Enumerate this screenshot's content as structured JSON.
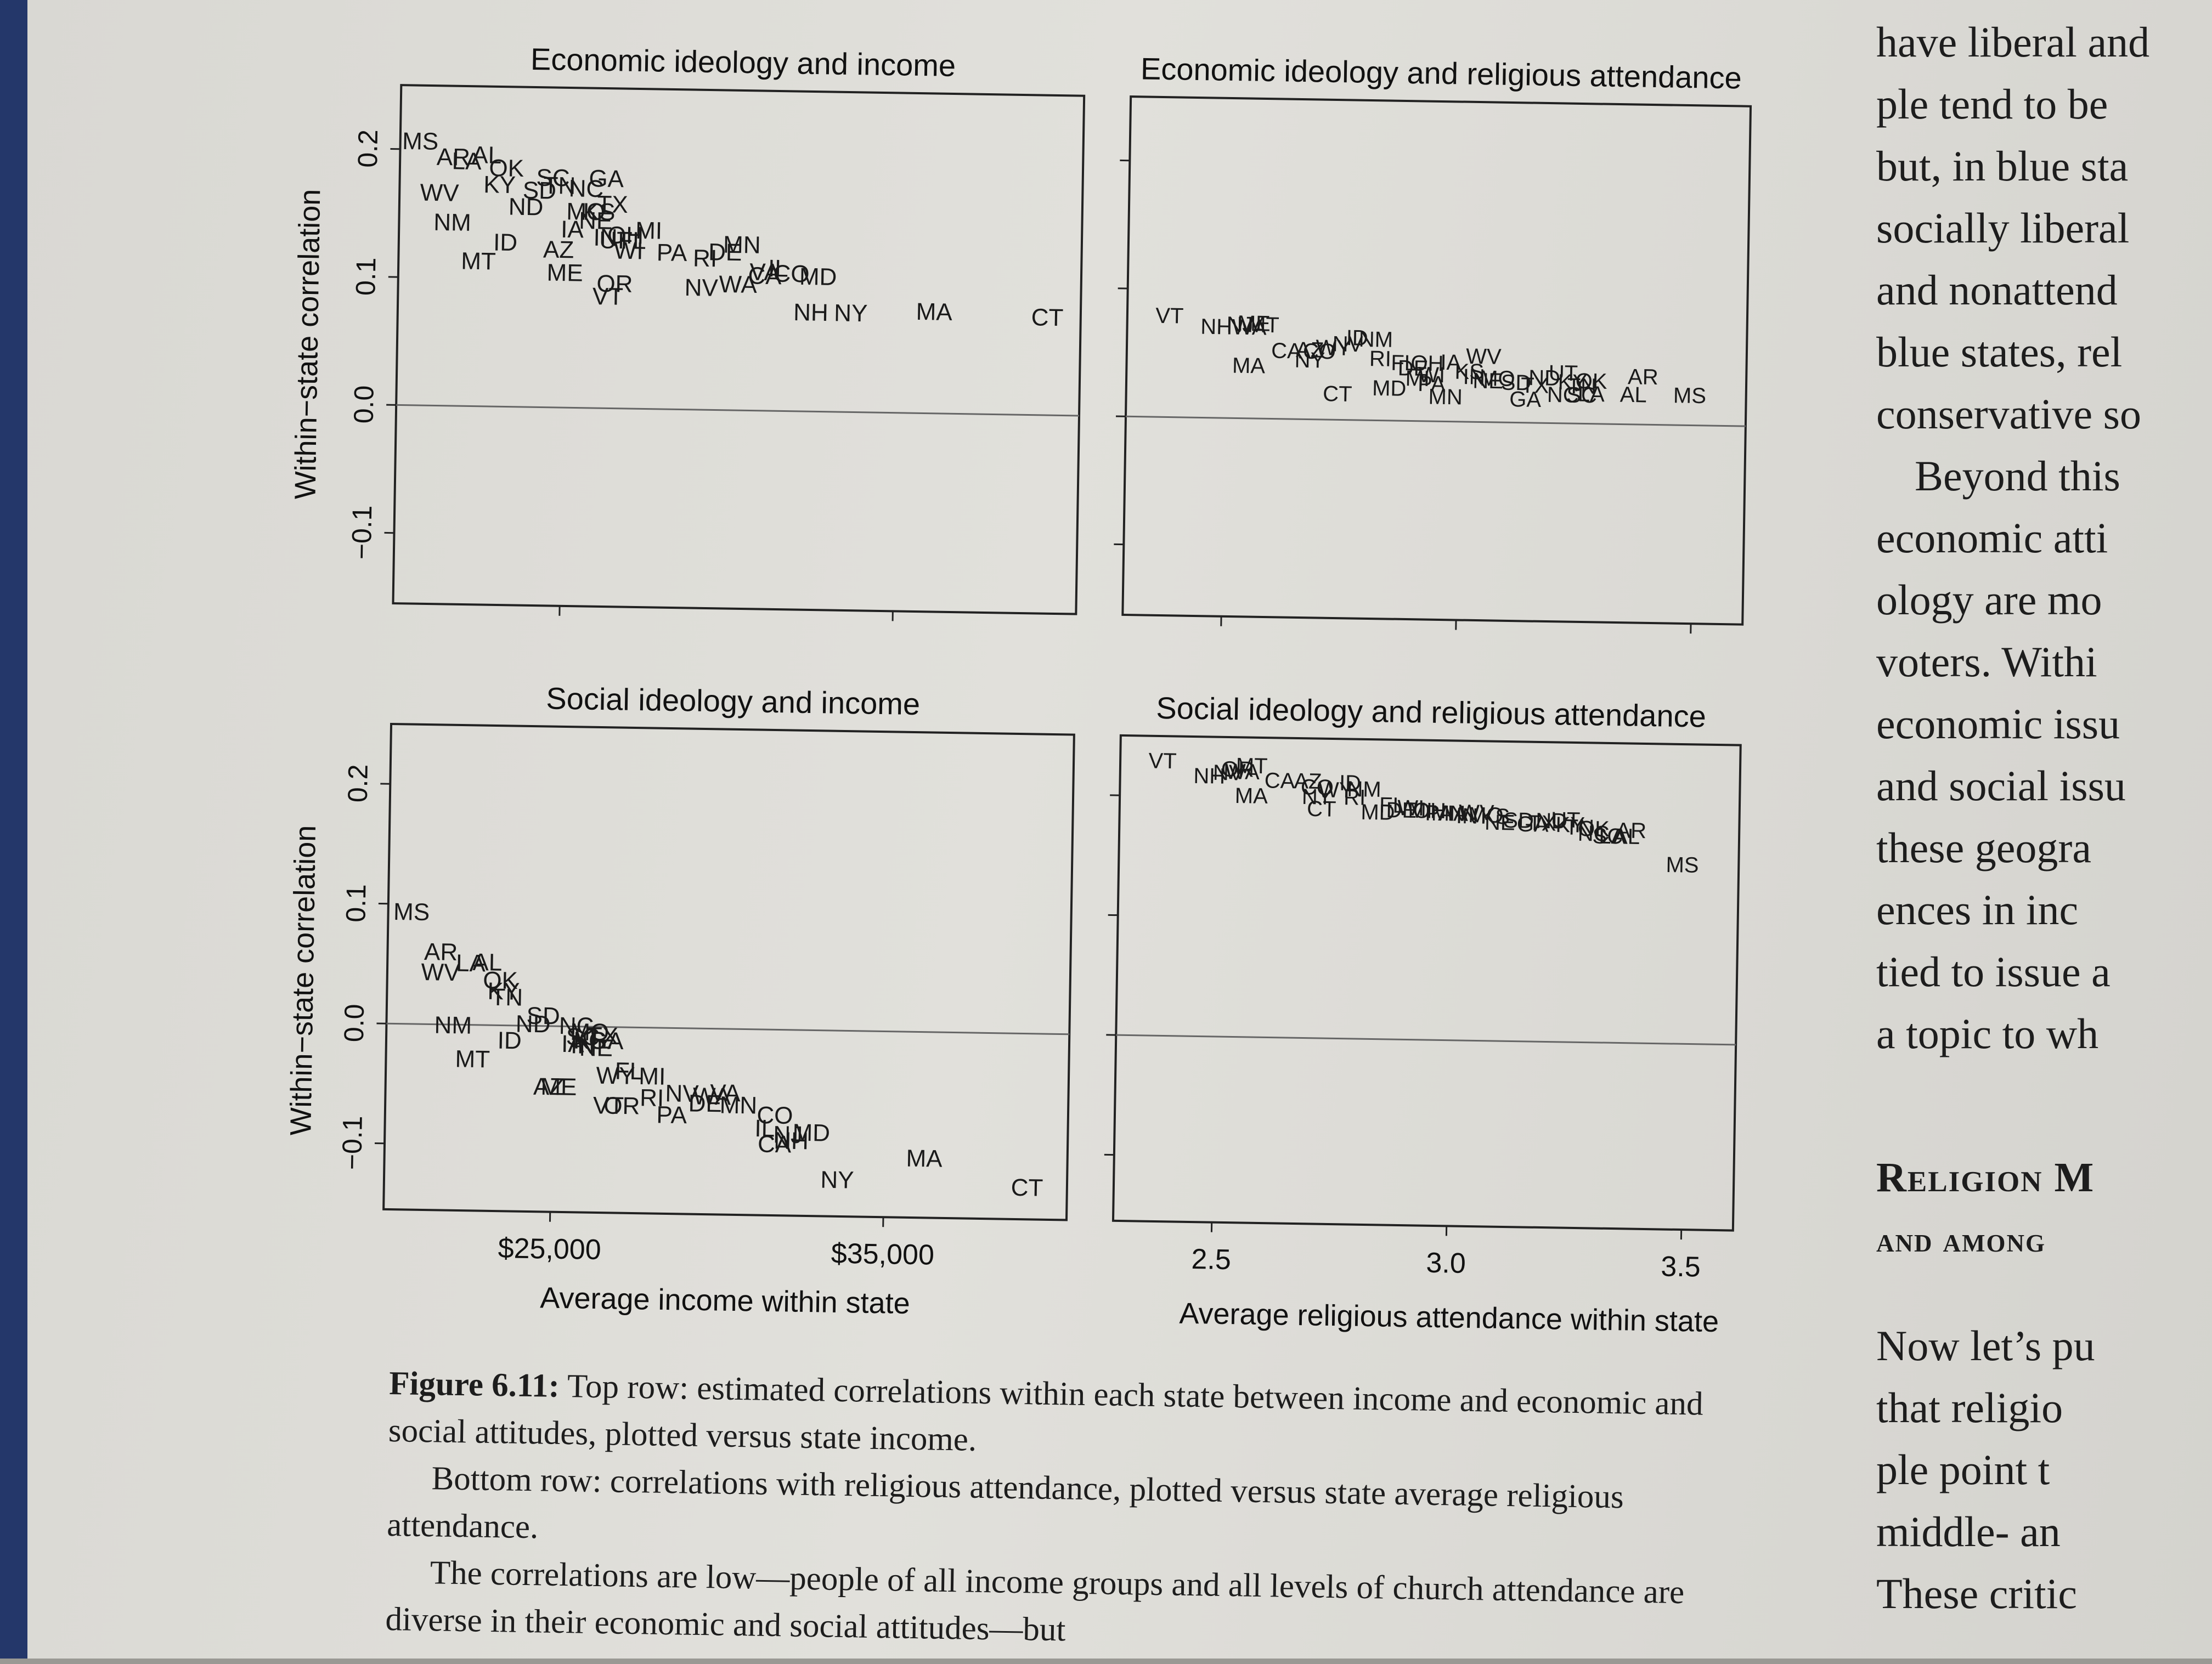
{
  "figure": {
    "ylabel": "Within−state correlation",
    "xlabel_income": "Average income within state",
    "xlabel_attendance": "Average religious attendance within state",
    "yticks": [
      "−0.1",
      "0.0",
      "0.1",
      "0.2"
    ],
    "income_ticks": [
      "$25,000",
      "$35,000"
    ],
    "attendance_ticks": [
      "2.5",
      "3.0",
      "3.5"
    ]
  },
  "chart_data": [
    {
      "type": "scatter",
      "title": "Economic ideology and income",
      "ylabel": "Within−state correlation",
      "xaxis": "income",
      "xlim": [
        20000,
        40500
      ],
      "ylim": [
        -0.155,
        0.25
      ],
      "show_xticks": false,
      "show_yticks": true,
      "zero_line": true,
      "points": [
        {
          "label": "MS",
          "x": 20600,
          "y": 0.205
        },
        {
          "label": "AR",
          "x": 21600,
          "y": 0.193
        },
        {
          "label": "AL",
          "x": 22600,
          "y": 0.195
        },
        {
          "label": "OK",
          "x": 23200,
          "y": 0.185
        },
        {
          "label": "WV",
          "x": 21200,
          "y": 0.165
        },
        {
          "label": "KY",
          "x": 23000,
          "y": 0.172
        },
        {
          "label": "SD",
          "x": 24200,
          "y": 0.168
        },
        {
          "label": "TN",
          "x": 24800,
          "y": 0.172
        },
        {
          "label": "NC",
          "x": 25600,
          "y": 0.17
        },
        {
          "label": "GA",
          "x": 26200,
          "y": 0.178
        },
        {
          "label": "ND",
          "x": 23800,
          "y": 0.155
        },
        {
          "label": "LA",
          "x": 22000,
          "y": 0.19
        },
        {
          "label": "TX",
          "x": 26400,
          "y": 0.158
        },
        {
          "label": "MO",
          "x": 25600,
          "y": 0.152
        },
        {
          "label": "NM",
          "x": 21600,
          "y": 0.142
        },
        {
          "label": "IA",
          "x": 25200,
          "y": 0.138
        },
        {
          "label": "SC",
          "x": 24600,
          "y": 0.178
        },
        {
          "label": "NE",
          "x": 25900,
          "y": 0.145
        },
        {
          "label": "KS",
          "x": 26000,
          "y": 0.152
        },
        {
          "label": "MI",
          "x": 27500,
          "y": 0.138
        },
        {
          "label": "OH",
          "x": 26800,
          "y": 0.134
        },
        {
          "label": "IN",
          "x": 26200,
          "y": 0.132
        },
        {
          "label": "FL",
          "x": 27000,
          "y": 0.13
        },
        {
          "label": "WI",
          "x": 26900,
          "y": 0.122
        },
        {
          "label": "UT",
          "x": 26500,
          "y": 0.13
        },
        {
          "label": "PA",
          "x": 28200,
          "y": 0.121
        },
        {
          "label": "RI",
          "x": 29200,
          "y": 0.117
        },
        {
          "label": "DE",
          "x": 29800,
          "y": 0.122
        },
        {
          "label": "MN",
          "x": 30300,
          "y": 0.128
        },
        {
          "label": "ID",
          "x": 23200,
          "y": 0.127
        },
        {
          "label": "AZ",
          "x": 24800,
          "y": 0.122
        },
        {
          "label": "MT",
          "x": 22400,
          "y": 0.112
        },
        {
          "label": "ME",
          "x": 25000,
          "y": 0.104
        },
        {
          "label": "OR",
          "x": 26500,
          "y": 0.096
        },
        {
          "label": "VT",
          "x": 26300,
          "y": 0.086
        },
        {
          "label": "NV",
          "x": 29100,
          "y": 0.094
        },
        {
          "label": "WA",
          "x": 30200,
          "y": 0.097
        },
        {
          "label": "VA",
          "x": 31000,
          "y": 0.107
        },
        {
          "label": "IL",
          "x": 31400,
          "y": 0.11
        },
        {
          "label": "CA",
          "x": 31000,
          "y": 0.104
        },
        {
          "label": "CO",
          "x": 31800,
          "y": 0.106
        },
        {
          "label": "MD",
          "x": 32600,
          "y": 0.104
        },
        {
          "label": "NH",
          "x": 32400,
          "y": 0.076
        },
        {
          "label": "NY",
          "x": 33600,
          "y": 0.076
        },
        {
          "label": "MA",
          "x": 36100,
          "y": 0.078
        },
        {
          "label": "CT",
          "x": 39500,
          "y": 0.075
        }
      ]
    },
    {
      "type": "scatter",
      "title": "Economic ideology and religious attendance",
      "xaxis": "attendance",
      "xlim": [
        2.29,
        3.61
      ],
      "ylim": [
        -0.155,
        0.25
      ],
      "show_xticks": false,
      "show_yticks": false,
      "zero_line": true,
      "points": [
        {
          "label": "VT",
          "x": 2.38,
          "y": 0.078
        },
        {
          "label": "NH",
          "x": 2.48,
          "y": 0.07
        },
        {
          "label": "NJ",
          "x": 2.53,
          "y": 0.072
        },
        {
          "label": "WA",
          "x": 2.55,
          "y": 0.07
        },
        {
          "label": "ME",
          "x": 2.56,
          "y": 0.073
        },
        {
          "label": "MT",
          "x": 2.58,
          "y": 0.072
        },
        {
          "label": "MA",
          "x": 2.55,
          "y": 0.04
        },
        {
          "label": "CA",
          "x": 2.63,
          "y": 0.052
        },
        {
          "label": "AZ",
          "x": 2.68,
          "y": 0.053
        },
        {
          "label": "NY",
          "x": 2.68,
          "y": 0.045
        },
        {
          "label": "CO",
          "x": 2.7,
          "y": 0.052
        },
        {
          "label": "WY",
          "x": 2.73,
          "y": 0.055
        },
        {
          "label": "NV",
          "x": 2.76,
          "y": 0.058
        },
        {
          "label": "ID",
          "x": 2.78,
          "y": 0.063
        },
        {
          "label": "NM",
          "x": 2.82,
          "y": 0.062
        },
        {
          "label": "RI",
          "x": 2.83,
          "y": 0.047
        },
        {
          "label": "CT",
          "x": 2.74,
          "y": 0.019
        },
        {
          "label": "MD",
          "x": 2.85,
          "y": 0.024
        },
        {
          "label": "FL",
          "x": 2.88,
          "y": 0.044
        },
        {
          "label": "DE",
          "x": 2.9,
          "y": 0.04
        },
        {
          "label": "OH",
          "x": 2.93,
          "y": 0.044
        },
        {
          "label": "WI",
          "x": 2.94,
          "y": 0.035
        },
        {
          "label": "MI",
          "x": 2.91,
          "y": 0.032
        },
        {
          "label": "PA",
          "x": 2.94,
          "y": 0.028
        },
        {
          "label": "MN",
          "x": 2.97,
          "y": 0.018
        },
        {
          "label": "IA",
          "x": 2.98,
          "y": 0.045
        },
        {
          "label": "KS",
          "x": 3.02,
          "y": 0.038
        },
        {
          "label": "IN",
          "x": 3.03,
          "y": 0.034
        },
        {
          "label": "WV",
          "x": 3.05,
          "y": 0.05
        },
        {
          "label": "NE",
          "x": 3.06,
          "y": 0.031
        },
        {
          "label": "MO",
          "x": 3.08,
          "y": 0.033
        },
        {
          "label": "SD",
          "x": 3.12,
          "y": 0.03
        },
        {
          "label": "GA",
          "x": 3.14,
          "y": 0.017
        },
        {
          "label": "TX",
          "x": 3.16,
          "y": 0.028
        },
        {
          "label": "ND",
          "x": 3.18,
          "y": 0.034
        },
        {
          "label": "UT",
          "x": 3.22,
          "y": 0.038
        },
        {
          "label": "KY",
          "x": 3.24,
          "y": 0.031
        },
        {
          "label": "TN",
          "x": 3.26,
          "y": 0.028
        },
        {
          "label": "OK",
          "x": 3.28,
          "y": 0.032
        },
        {
          "label": "NC",
          "x": 3.22,
          "y": 0.021
        },
        {
          "label": "SC",
          "x": 3.26,
          "y": 0.021
        },
        {
          "label": "LA",
          "x": 3.28,
          "y": 0.022
        },
        {
          "label": "AL",
          "x": 3.37,
          "y": 0.022
        },
        {
          "label": "AR",
          "x": 3.39,
          "y": 0.036
        },
        {
          "label": "MS",
          "x": 3.49,
          "y": 0.022
        }
      ]
    },
    {
      "type": "scatter",
      "title": "Social ideology and income",
      "ylabel": "Within−state correlation",
      "xaxis": "income",
      "xlim": [
        20000,
        40500
      ],
      "ylim": [
        -0.155,
        0.25
      ],
      "show_xticks": true,
      "show_yticks": true,
      "zero_line": true,
      "points": [
        {
          "label": "MS",
          "x": 20700,
          "y": 0.092
        },
        {
          "label": "AR",
          "x": 21600,
          "y": 0.059
        },
        {
          "label": "LA",
          "x": 22500,
          "y": 0.05
        },
        {
          "label": "AL",
          "x": 23000,
          "y": 0.051
        },
        {
          "label": "WV",
          "x": 21600,
          "y": 0.042
        },
        {
          "label": "OK",
          "x": 23400,
          "y": 0.036
        },
        {
          "label": "KY",
          "x": 23500,
          "y": 0.027
        },
        {
          "label": "TN",
          "x": 23600,
          "y": 0.022
        },
        {
          "label": "NM",
          "x": 22000,
          "y": -0.002
        },
        {
          "label": "SD",
          "x": 24700,
          "y": 0.007
        },
        {
          "label": "ND",
          "x": 24400,
          "y": 0.0
        },
        {
          "label": "NC",
          "x": 25700,
          "y": -0.001
        },
        {
          "label": "TX",
          "x": 26500,
          "y": -0.009
        },
        {
          "label": "MT",
          "x": 22600,
          "y": -0.03
        },
        {
          "label": "ID",
          "x": 23700,
          "y": -0.014
        },
        {
          "label": "IA",
          "x": 25600,
          "y": -0.016
        },
        {
          "label": "KS",
          "x": 26100,
          "y": -0.013
        },
        {
          "label": "NE",
          "x": 26300,
          "y": -0.019
        },
        {
          "label": "GA",
          "x": 26600,
          "y": -0.013
        },
        {
          "label": "SC",
          "x": 25900,
          "y": -0.01
        },
        {
          "label": "MO",
          "x": 26100,
          "y": -0.006
        },
        {
          "label": "IN",
          "x": 25900,
          "y": -0.017
        },
        {
          "label": "AZ",
          "x": 24900,
          "y": -0.052
        },
        {
          "label": "ME",
          "x": 25200,
          "y": -0.052
        },
        {
          "label": "WY",
          "x": 26900,
          "y": -0.042
        },
        {
          "label": "FL",
          "x": 27300,
          "y": -0.038
        },
        {
          "label": "MI",
          "x": 28000,
          "y": -0.042
        },
        {
          "label": "VT",
          "x": 26700,
          "y": -0.067
        },
        {
          "label": "OR",
          "x": 27100,
          "y": -0.067
        },
        {
          "label": "RI",
          "x": 28000,
          "y": -0.06
        },
        {
          "label": "PA",
          "x": 28600,
          "y": -0.074
        },
        {
          "label": "NV",
          "x": 28900,
          "y": -0.056
        },
        {
          "label": "DE",
          "x": 29600,
          "y": -0.064
        },
        {
          "label": "WA",
          "x": 29800,
          "y": -0.058
        },
        {
          "label": "VA",
          "x": 30200,
          "y": -0.055
        },
        {
          "label": "MN",
          "x": 30600,
          "y": -0.065
        },
        {
          "label": "CO",
          "x": 31700,
          "y": -0.073
        },
        {
          "label": "IL",
          "x": 31400,
          "y": -0.084
        },
        {
          "label": "NJ",
          "x": 32100,
          "y": -0.089
        },
        {
          "label": "MD",
          "x": 32800,
          "y": -0.087
        },
        {
          "label": "CA",
          "x": 31700,
          "y": -0.097
        },
        {
          "label": "NH",
          "x": 32200,
          "y": -0.094
        },
        {
          "label": "NY",
          "x": 33600,
          "y": -0.126
        },
        {
          "label": "MA",
          "x": 36200,
          "y": -0.107
        },
        {
          "label": "CT",
          "x": 39300,
          "y": -0.13
        }
      ]
    },
    {
      "type": "scatter",
      "title": "Social ideology and religious attendance",
      "xlabel": "Average religious attendance within state",
      "xaxis": "attendance",
      "xlim": [
        2.29,
        3.61
      ],
      "ylim": [
        -0.155,
        0.25
      ],
      "show_xticks": true,
      "show_yticks": false,
      "zero_line": true,
      "points": [
        {
          "label": "VT",
          "x": 2.38,
          "y": 0.228
        },
        {
          "label": "NH",
          "x": 2.48,
          "y": 0.216
        },
        {
          "label": "NV",
          "x": 2.52,
          "y": 0.219
        },
        {
          "label": "OR",
          "x": 2.54,
          "y": 0.222
        },
        {
          "label": "WA",
          "x": 2.55,
          "y": 0.22
        },
        {
          "label": "MT",
          "x": 2.57,
          "y": 0.225
        },
        {
          "label": "MA",
          "x": 2.57,
          "y": 0.2
        },
        {
          "label": "CA",
          "x": 2.63,
          "y": 0.213
        },
        {
          "label": "AZ",
          "x": 2.69,
          "y": 0.213
        },
        {
          "label": "CO",
          "x": 2.71,
          "y": 0.208
        },
        {
          "label": "NY",
          "x": 2.71,
          "y": 0.2
        },
        {
          "label": "CT",
          "x": 2.72,
          "y": 0.19
        },
        {
          "label": "WY",
          "x": 2.75,
          "y": 0.206
        },
        {
          "label": "ID",
          "x": 2.78,
          "y": 0.212
        },
        {
          "label": "NM",
          "x": 2.81,
          "y": 0.207
        },
        {
          "label": "RI",
          "x": 2.79,
          "y": 0.2
        },
        {
          "label": "MD",
          "x": 2.84,
          "y": 0.188
        },
        {
          "label": "FL",
          "x": 2.87,
          "y": 0.194
        },
        {
          "label": "DE",
          "x": 2.89,
          "y": 0.19
        },
        {
          "label": "WI",
          "x": 2.91,
          "y": 0.192
        },
        {
          "label": "MI",
          "x": 2.93,
          "y": 0.19
        },
        {
          "label": "OH",
          "x": 2.95,
          "y": 0.19
        },
        {
          "label": "PA",
          "x": 2.97,
          "y": 0.188
        },
        {
          "label": "MN",
          "x": 2.99,
          "y": 0.188
        },
        {
          "label": "IA",
          "x": 3.01,
          "y": 0.188
        },
        {
          "label": "IN",
          "x": 3.03,
          "y": 0.186
        },
        {
          "label": "WV",
          "x": 3.05,
          "y": 0.189
        },
        {
          "label": "MO",
          "x": 3.07,
          "y": 0.187
        },
        {
          "label": "KS",
          "x": 3.09,
          "y": 0.186
        },
        {
          "label": "NE",
          "x": 3.1,
          "y": 0.181
        },
        {
          "label": "SD",
          "x": 3.14,
          "y": 0.183
        },
        {
          "label": "GA",
          "x": 3.17,
          "y": 0.18
        },
        {
          "label": "TX",
          "x": 3.19,
          "y": 0.181
        },
        {
          "label": "ND",
          "x": 3.21,
          "y": 0.183
        },
        {
          "label": "UT",
          "x": 3.24,
          "y": 0.184
        },
        {
          "label": "KY",
          "x": 3.25,
          "y": 0.18
        },
        {
          "label": "TN",
          "x": 3.27,
          "y": 0.178
        },
        {
          "label": "OK",
          "x": 3.3,
          "y": 0.177
        },
        {
          "label": "NC",
          "x": 3.3,
          "y": 0.173
        },
        {
          "label": "SC",
          "x": 3.33,
          "y": 0.171
        },
        {
          "label": "LA",
          "x": 3.34,
          "y": 0.171
        },
        {
          "label": "AL",
          "x": 3.37,
          "y": 0.171
        },
        {
          "label": "AR",
          "x": 3.38,
          "y": 0.176
        },
        {
          "label": "MS",
          "x": 3.49,
          "y": 0.148
        }
      ]
    }
  ],
  "caption": {
    "fig_label": "Figure 6.11:",
    "line1": " Top row: estimated correlations within each state between income and economic and social attitudes, plotted versus state income.",
    "para2": "Bottom row: correlations with religious attendance, plotted versus state average religious attendance.",
    "para3": "The correlations are low—people of all income groups and all levels of church attendance are diverse in their economic and social attitudes—but"
  },
  "right_column": {
    "lines": [
      "have liberal and",
      "ple tend to be",
      "but, in blue sta",
      "socially liberal",
      "and nonattend",
      "blue states, rel",
      "conservative so",
      "Beyond this",
      "economic atti",
      "ology are mo",
      "voters. Withi",
      "economic issu",
      "and social issu",
      "these geogra",
      "ences in inc",
      "tied to issue a",
      "a topic to wh"
    ],
    "heading_line1": "Religion M",
    "heading_line2": "and among",
    "para_lines": [
      "Now let’s pu",
      "that religio",
      "ple point t",
      "middle- an",
      "These critic"
    ]
  }
}
